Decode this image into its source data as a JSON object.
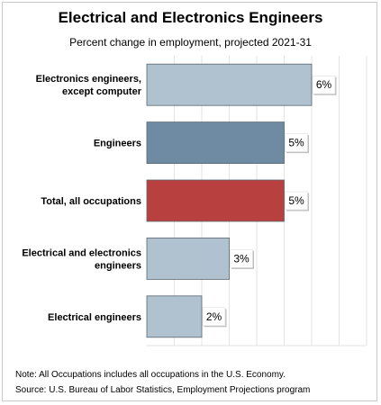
{
  "title": "Electrical and Electronics Engineers",
  "subtitle": "Percent change in employment, projected 2021-31",
  "chart_data": {
    "type": "bar",
    "orientation": "horizontal",
    "categories": [
      [
        "Electronics engineers,",
        "except computer"
      ],
      [
        "Engineers"
      ],
      [
        "Total, all occupations"
      ],
      [
        "Electrical and electronics",
        "engineers"
      ],
      [
        "Electrical engineers"
      ]
    ],
    "values": [
      6,
      5,
      5,
      3,
      2
    ],
    "value_labels": [
      "6%",
      "5%",
      "5%",
      "3%",
      "2%"
    ],
    "bar_colors": [
      "#b0c1cf",
      "#6e8ba3",
      "#b8413f",
      "#b0c1cf",
      "#b0c1cf"
    ],
    "xlim": [
      0,
      8
    ],
    "grid": true,
    "title": "Electrical and Electronics Engineers",
    "subtitle": "Percent change in employment, projected 2021-31"
  },
  "footer": {
    "note": "Note: All Occupations includes all occupations in the U.S. Economy.",
    "source": "Source: U.S. Bureau of Labor Statistics, Employment Projections program"
  }
}
